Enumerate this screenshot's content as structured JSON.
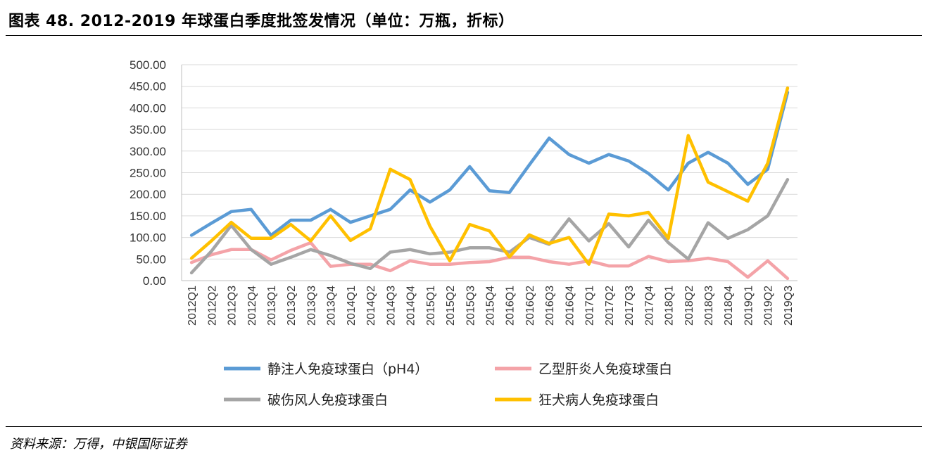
{
  "figure": {
    "title": "图表 48. 2012-2019 年球蛋白季度批签发情况（单位：万瓶，折标）",
    "source": "资料来源：万得，中银国际证券"
  },
  "chart_data": {
    "type": "line",
    "title": "图表 48. 2012-2019 年球蛋白季度批签发情况（单位：万瓶，折标）",
    "xlabel": "",
    "ylabel": "",
    "unit": "万瓶，折标",
    "ylim": [
      0,
      500
    ],
    "yticks": [
      0,
      50,
      100,
      150,
      200,
      250,
      300,
      350,
      400,
      450,
      500
    ],
    "ytick_labels": [
      "0.00",
      "50.00",
      "100.00",
      "150.00",
      "200.00",
      "250.00",
      "300.00",
      "350.00",
      "400.00",
      "450.00",
      "500.00"
    ],
    "grid": "horizontal",
    "legend_position": "bottom",
    "categories": [
      "2012Q1",
      "2012Q2",
      "2012Q3",
      "2012Q4",
      "2013Q1",
      "2013Q2",
      "2013Q3",
      "2013Q4",
      "2014Q1",
      "2014Q2",
      "2014Q3",
      "2014Q4",
      "2015Q1",
      "2015Q2",
      "2015Q3",
      "2015Q4",
      "2016Q1",
      "2016Q2",
      "2016Q3",
      "2016Q4",
      "2017Q1",
      "2017Q2",
      "2017Q3",
      "2017Q4",
      "2018Q1",
      "2018Q2",
      "2018Q3",
      "2018Q4",
      "2019Q1",
      "2019Q2",
      "2019Q3"
    ],
    "series": [
      {
        "name": "静注人免疫球蛋白（pH4）",
        "color": "#5B9BD5",
        "values": [
          105,
          133,
          160,
          165,
          105,
          140,
          140,
          165,
          135,
          150,
          165,
          210,
          182,
          210,
          264,
          208,
          204,
          268,
          330,
          292,
          272,
          292,
          277,
          248,
          210,
          272,
          297,
          272,
          223,
          258,
          436
        ]
      },
      {
        "name": "乙型肝炎人免疫球蛋白",
        "color": "#F4A3A8",
        "values": [
          42,
          60,
          72,
          72,
          48,
          70,
          88,
          33,
          38,
          38,
          23,
          46,
          38,
          38,
          42,
          44,
          54,
          54,
          44,
          38,
          46,
          34,
          34,
          56,
          44,
          46,
          52,
          44,
          8,
          46,
          5
        ]
      },
      {
        "name": "破伤风人免疫球蛋白",
        "color": "#A5A5A5",
        "values": [
          18,
          68,
          128,
          72,
          38,
          54,
          72,
          58,
          40,
          28,
          66,
          72,
          62,
          66,
          76,
          76,
          66,
          100,
          84,
          143,
          92,
          132,
          78,
          140,
          88,
          50,
          134,
          98,
          118,
          150,
          234
        ]
      },
      {
        "name": "狂犬病人免疫球蛋白",
        "color": "#FFC000",
        "values": [
          52,
          92,
          135,
          98,
          98,
          130,
          92,
          150,
          93,
          120,
          258,
          234,
          126,
          46,
          130,
          115,
          55,
          106,
          86,
          100,
          38,
          154,
          150,
          158,
          98,
          336,
          228,
          206,
          184,
          272,
          446
        ]
      }
    ]
  }
}
